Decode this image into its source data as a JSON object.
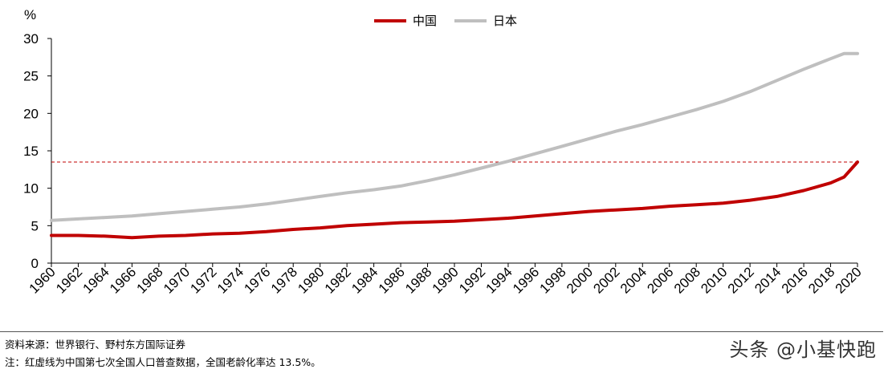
{
  "chart_data": {
    "type": "line",
    "ylabel": "%",
    "ylim": [
      0,
      30
    ],
    "yticks": [
      0,
      5,
      10,
      15,
      20,
      25,
      30
    ],
    "xlim": [
      1960,
      2020
    ],
    "xticks": [
      1960,
      1962,
      1964,
      1966,
      1968,
      1970,
      1972,
      1974,
      1976,
      1978,
      1980,
      1982,
      1984,
      1986,
      1988,
      1990,
      1992,
      1994,
      1996,
      1998,
      2000,
      2002,
      2004,
      2006,
      2008,
      2010,
      2012,
      2014,
      2016,
      2018,
      2020
    ],
    "x": [
      1960,
      1962,
      1964,
      1966,
      1968,
      1970,
      1972,
      1974,
      1976,
      1978,
      1980,
      1982,
      1984,
      1986,
      1988,
      1990,
      1992,
      1994,
      1996,
      1998,
      2000,
      2002,
      2004,
      2006,
      2008,
      2010,
      2012,
      2014,
      2016,
      2018,
      2019,
      2020
    ],
    "series": [
      {
        "name": "中国",
        "color": "#c00000",
        "values": [
          3.7,
          3.7,
          3.6,
          3.4,
          3.6,
          3.7,
          3.9,
          4.0,
          4.2,
          4.5,
          4.7,
          5.0,
          5.2,
          5.4,
          5.5,
          5.6,
          5.8,
          6.0,
          6.3,
          6.6,
          6.9,
          7.1,
          7.3,
          7.6,
          7.8,
          8.0,
          8.4,
          8.9,
          9.7,
          10.7,
          11.5,
          13.5
        ]
      },
      {
        "name": "日本",
        "color": "#bfbfbf",
        "values": [
          5.7,
          5.9,
          6.1,
          6.3,
          6.6,
          6.9,
          7.2,
          7.5,
          7.9,
          8.4,
          8.9,
          9.4,
          9.8,
          10.3,
          11.0,
          11.8,
          12.7,
          13.6,
          14.6,
          15.6,
          16.6,
          17.6,
          18.5,
          19.5,
          20.5,
          21.6,
          22.9,
          24.4,
          25.9,
          27.3,
          28.0,
          28.0
        ]
      }
    ],
    "reference_line": {
      "value": 13.5,
      "color": "#c00000",
      "style": "dashed"
    }
  },
  "footer": {
    "source": "资料来源：世界银行、野村东方国际证券",
    "note": "注：红虚线为中国第七次全国人口普查数据，全国老龄化率达 13.5%。"
  },
  "watermark": "头条 @小基快跑"
}
